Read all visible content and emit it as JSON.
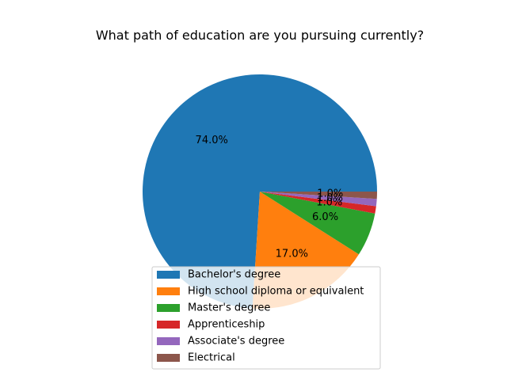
{
  "chart_data": {
    "type": "pie",
    "title": "What path of education are you pursuing currently?",
    "categories": [
      "Bachelor's degree",
      "High school diploma or equivalent",
      "Master's degree",
      "Apprenticeship",
      "Associate's degree",
      "Electrical"
    ],
    "values": [
      74.0,
      17.0,
      6.0,
      1.0,
      1.0,
      1.0
    ],
    "labels": [
      "74.0%",
      "17.0%",
      "6.0%",
      "1.0%",
      "1.0%",
      "1.0%"
    ],
    "colors": [
      "#1f77b4",
      "#ff7f0e",
      "#2ca02c",
      "#d62728",
      "#9467bd",
      "#8c564b"
    ],
    "start_angle_deg": 0,
    "direction": "counterclockwise",
    "legend_position": "lower-center"
  }
}
